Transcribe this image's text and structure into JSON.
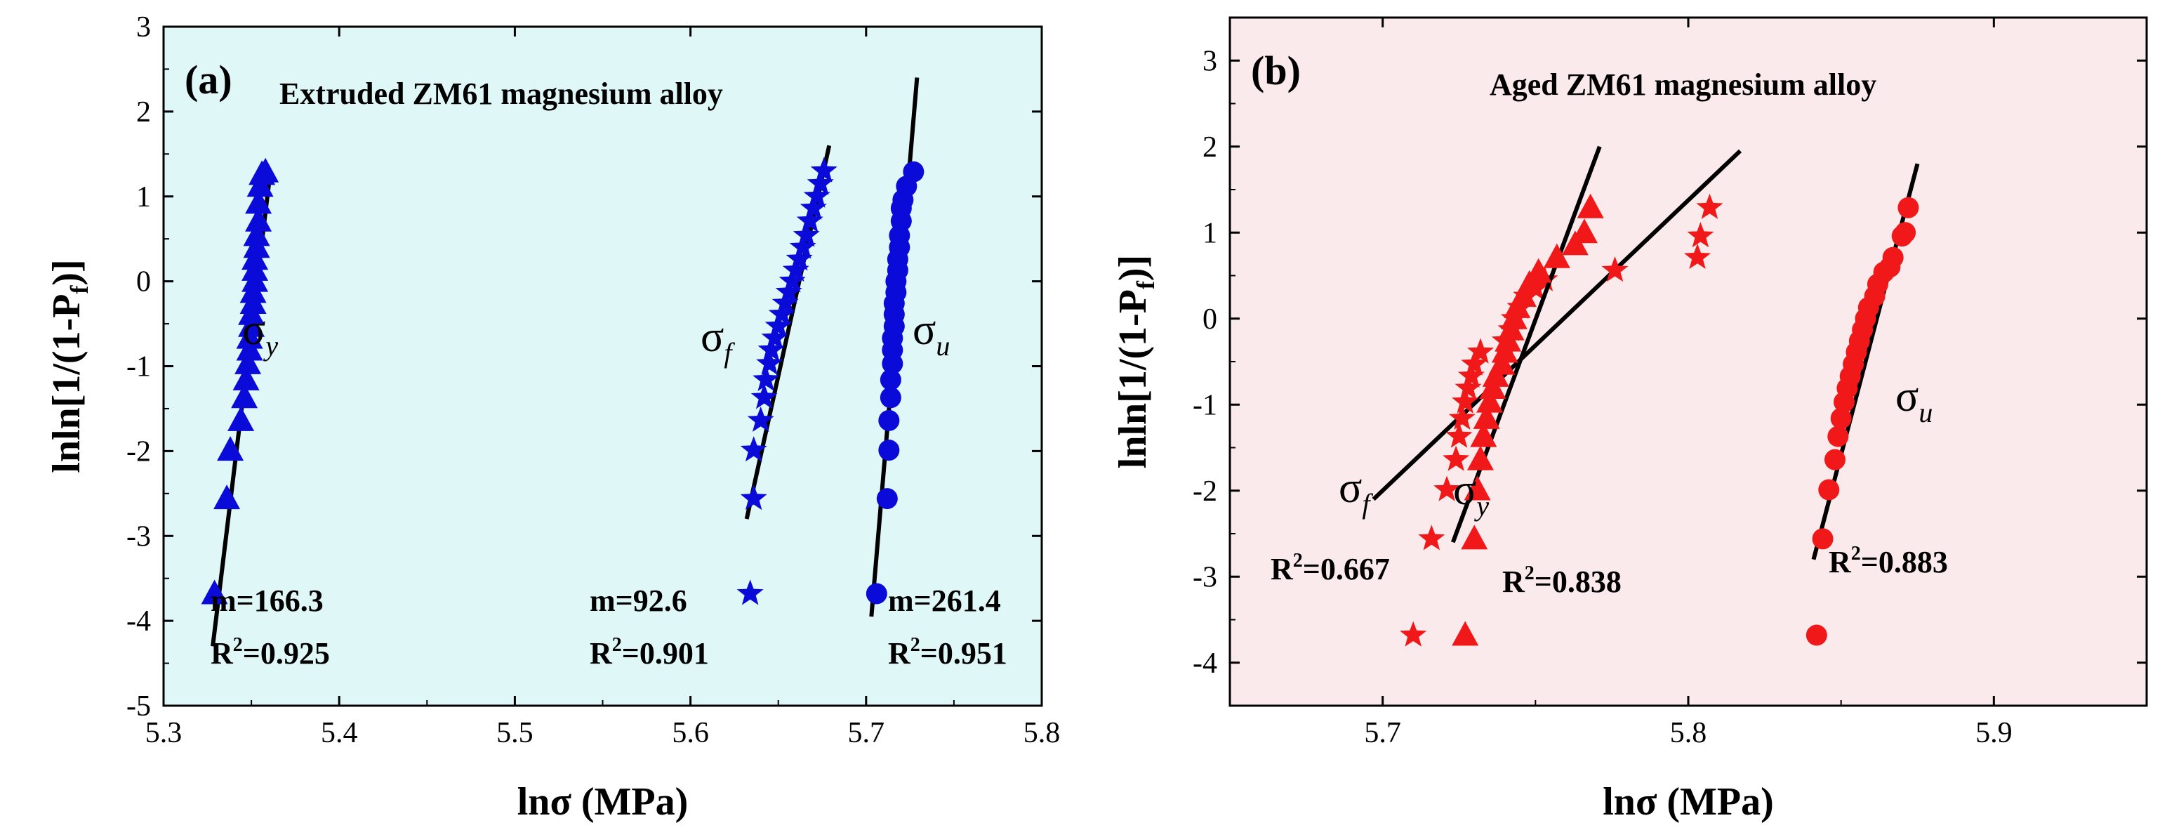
{
  "chart_data": [
    {
      "type": "scatter",
      "panel_label": "(a)",
      "title": "Extruded ZM61 magnesium alloy",
      "xlabel": "lnσ (MPa)",
      "ylabel": "lnln[1/(1-P",
      "ylabel_sub": "f",
      "ylabel_end": ")]",
      "xlim": [
        5.3,
        5.8
      ],
      "ylim": [
        -5,
        3
      ],
      "xticks": [
        5.3,
        5.4,
        5.5,
        5.6,
        5.7,
        5.8
      ],
      "xtick_labels": [
        "5.3",
        "5.4",
        "5.5",
        "5.6",
        "5.7",
        "5.8"
      ],
      "yticks": [
        -5,
        -4,
        -3,
        -2,
        -1,
        0,
        1,
        2,
        3
      ],
      "ytick_labels": [
        "-5",
        "-4",
        "-3",
        "-2",
        "-1",
        "0",
        "1",
        "2",
        "3"
      ],
      "background": "#dff7f7",
      "marker_color": "#0b0bd9",
      "series": [
        {
          "name": "σ_y",
          "symbol": "σ",
          "subscript": "y",
          "marker": "triangle",
          "x": [
            5.329,
            5.336,
            5.338,
            5.344,
            5.346,
            5.347,
            5.348,
            5.349,
            5.349,
            5.35,
            5.35,
            5.351,
            5.351,
            5.352,
            5.352,
            5.352,
            5.353,
            5.353,
            5.354,
            5.354,
            5.355,
            5.356,
            5.358
          ],
          "y": [
            -3.68,
            -2.56,
            -1.99,
            -1.64,
            -1.37,
            -1.16,
            -0.97,
            -0.81,
            -0.67,
            -0.53,
            -0.39,
            -0.26,
            -0.13,
            0.0,
            0.13,
            0.26,
            0.4,
            0.54,
            0.71,
            0.92,
            1.12,
            1.26,
            1.29
          ],
          "fit": {
            "x": [
              5.328,
              5.36
            ],
            "y": [
              -4.3,
              1.15
            ]
          },
          "m": "m=166.3",
          "r2_value": "=0.925"
        },
        {
          "name": "σ_f",
          "symbol": "σ",
          "subscript": "f",
          "marker": "star",
          "x": [
            5.634,
            5.636,
            5.636,
            5.64,
            5.642,
            5.643,
            5.645,
            5.646,
            5.648,
            5.65,
            5.652,
            5.654,
            5.656,
            5.658,
            5.66,
            5.662,
            5.664,
            5.666,
            5.668,
            5.67,
            5.672,
            5.674,
            5.676
          ],
          "y": [
            -3.68,
            -2.56,
            -1.99,
            -1.64,
            -1.37,
            -1.16,
            -0.97,
            -0.81,
            -0.67,
            -0.53,
            -0.39,
            -0.26,
            -0.13,
            0.0,
            0.13,
            0.26,
            0.4,
            0.54,
            0.71,
            0.86,
            1.0,
            1.15,
            1.3
          ],
          "fit": {
            "x": [
              5.632,
              5.679
            ],
            "y": [
              -2.8,
              1.6
            ]
          },
          "m": "m=92.6",
          "r2_value": "=0.901"
        },
        {
          "name": "σ_u",
          "symbol": "σ",
          "subscript": "u",
          "marker": "circle",
          "x": [
            5.706,
            5.712,
            5.713,
            5.713,
            5.714,
            5.714,
            5.715,
            5.715,
            5.715,
            5.716,
            5.716,
            5.716,
            5.717,
            5.717,
            5.718,
            5.718,
            5.719,
            5.719,
            5.72,
            5.72,
            5.721,
            5.723,
            5.727
          ],
          "y": [
            -3.68,
            -2.56,
            -1.99,
            -1.64,
            -1.37,
            -1.16,
            -0.97,
            -0.81,
            -0.67,
            -0.53,
            -0.39,
            -0.26,
            -0.13,
            0.0,
            0.13,
            0.26,
            0.4,
            0.54,
            0.71,
            0.86,
            0.96,
            1.12,
            1.29
          ],
          "fit": {
            "x": [
              5.703,
              5.729
            ],
            "y": [
              -3.95,
              2.4
            ]
          },
          "m": "m=261.4",
          "r2_value": "=0.951"
        }
      ]
    },
    {
      "type": "scatter",
      "panel_label": "(b)",
      "title": "Aged ZM61 magnesium alloy",
      "xlabel": "lnσ (MPa)",
      "ylabel": "lnln[1/(1-P",
      "ylabel_sub": "f",
      "ylabel_end": ")]",
      "xlim": [
        5.65,
        5.95
      ],
      "ylim": [
        -4.5,
        3.5
      ],
      "xticks": [
        5.7,
        5.8,
        5.9
      ],
      "xtick_labels": [
        "5.7",
        "5.8",
        "5.9"
      ],
      "yticks": [
        -4,
        -3,
        -2,
        -1,
        0,
        1,
        2,
        3
      ],
      "ytick_labels": [
        "-4",
        "-3",
        "-2",
        "-1",
        "0",
        "1",
        "2",
        "3"
      ],
      "background": "#fbeaec",
      "marker_color": "#f01818",
      "series": [
        {
          "name": "σ_f",
          "symbol": "σ",
          "subscript": "f",
          "marker": "star",
          "x": [
            5.71,
            5.716,
            5.721,
            5.724,
            5.725,
            5.726,
            5.727,
            5.728,
            5.729,
            5.73,
            5.732,
            5.74,
            5.742,
            5.743,
            5.745,
            5.747,
            5.75,
            5.753,
            5.776,
            5.803,
            5.804,
            5.807
          ],
          "y": [
            -3.68,
            -2.56,
            -1.99,
            -1.64,
            -1.37,
            -1.16,
            -0.97,
            -0.81,
            -0.67,
            -0.53,
            -0.39,
            -0.26,
            -0.13,
            0.0,
            0.13,
            0.26,
            0.35,
            0.45,
            0.56,
            0.71,
            0.96,
            1.29
          ],
          "fit": {
            "x": [
              5.697,
              5.817
            ],
            "y": [
              -2.1,
              1.95
            ]
          },
          "r2_value": "=0.667"
        },
        {
          "name": "σ_y",
          "symbol": "σ",
          "subscript": "y",
          "marker": "triangle",
          "x": [
            5.727,
            5.73,
            5.731,
            5.732,
            5.733,
            5.734,
            5.735,
            5.736,
            5.737,
            5.739,
            5.74,
            5.741,
            5.742,
            5.743,
            5.744,
            5.746,
            5.748,
            5.751,
            5.757,
            5.763,
            5.766,
            5.768
          ],
          "y": [
            -3.68,
            -2.56,
            -1.99,
            -1.64,
            -1.37,
            -1.16,
            -0.97,
            -0.81,
            -0.67,
            -0.53,
            -0.39,
            -0.26,
            -0.13,
            0.0,
            0.13,
            0.26,
            0.4,
            0.54,
            0.71,
            0.86,
            1.0,
            1.29
          ],
          "fit": {
            "x": [
              5.723,
              5.771
            ],
            "y": [
              -2.6,
              2.0
            ]
          },
          "r2_value": "=0.838"
        },
        {
          "name": "σ_u",
          "symbol": "σ",
          "subscript": "u",
          "marker": "circle",
          "x": [
            5.842,
            5.844,
            5.846,
            5.848,
            5.849,
            5.85,
            5.851,
            5.852,
            5.853,
            5.854,
            5.855,
            5.856,
            5.857,
            5.858,
            5.859,
            5.861,
            5.862,
            5.864,
            5.866,
            5.867,
            5.87,
            5.871,
            5.872
          ],
          "y": [
            -3.68,
            -2.56,
            -1.99,
            -1.64,
            -1.37,
            -1.16,
            -0.97,
            -0.81,
            -0.67,
            -0.53,
            -0.39,
            -0.26,
            -0.13,
            0.0,
            0.13,
            0.26,
            0.4,
            0.54,
            0.6,
            0.71,
            0.96,
            1.0,
            1.29
          ],
          "fit": {
            "x": [
              5.841,
              5.875
            ],
            "y": [
              -2.8,
              1.8
            ]
          },
          "r2_value": "=0.883"
        }
      ]
    }
  ]
}
